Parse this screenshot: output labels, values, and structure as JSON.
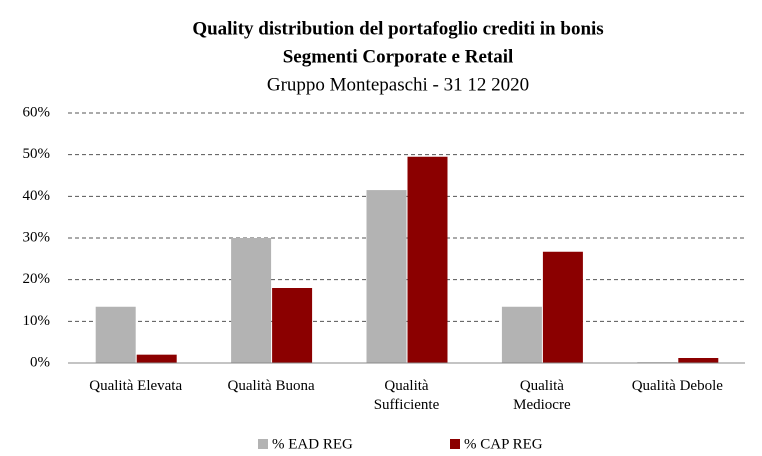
{
  "chart_data": {
    "type": "bar",
    "title": "Quality distribution del portafoglio crediti in bonis",
    "subtitle_bold": "Segmenti Corporate e Retail",
    "subtitle": "Gruppo Montepaschi - 31 12 2020",
    "categories": [
      "Qualità Elevata",
      "Qualità Buona",
      "Qualità\nSufficiente",
      "Qualità\nMediocre",
      "Qualità Debole"
    ],
    "series": [
      {
        "name": "% EAD REG",
        "color": "#b3b3b3",
        "values": [
          13.5,
          30,
          41.5,
          13.5,
          0.2
        ]
      },
      {
        "name": "% CAP REG",
        "color": "#8b0000",
        "values": [
          2,
          18,
          49.5,
          26.7,
          1.2
        ]
      }
    ],
    "ylim": [
      0,
      60
    ],
    "yticks": [
      {
        "value": 0,
        "label": "0%"
      },
      {
        "value": 10,
        "label": "10%"
      },
      {
        "value": 20,
        "label": "20%"
      },
      {
        "value": 30,
        "label": "30%"
      },
      {
        "value": 40,
        "label": "40%"
      },
      {
        "value": 50,
        "label": "50%"
      },
      {
        "value": 60,
        "label": "60%"
      }
    ],
    "grid": true,
    "legend": "bottom"
  }
}
